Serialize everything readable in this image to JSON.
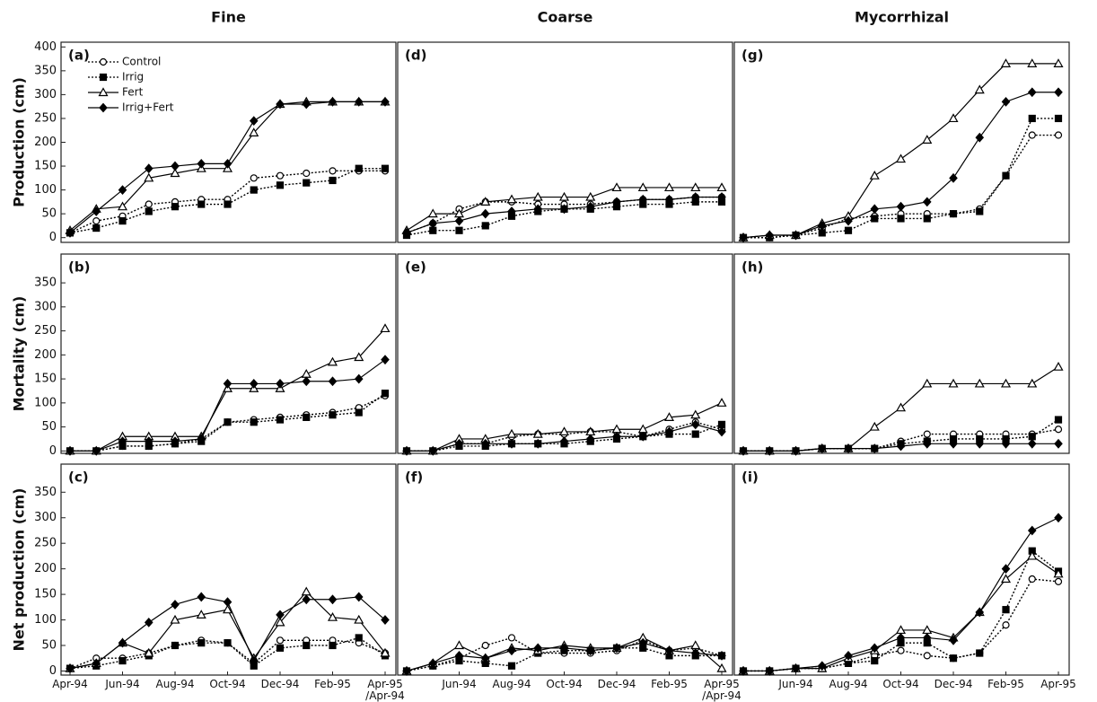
{
  "chart_data": [
    {
      "type": "line",
      "label": "(a)",
      "title": "Fine",
      "ylabel": "Production (cm)",
      "ylim": [
        -10,
        410
      ],
      "yticks": [
        0,
        50,
        100,
        150,
        200,
        250,
        300,
        350,
        400
      ],
      "legend": "upper left",
      "series": [
        {
          "name": "Control",
          "marker": "circle",
          "dashed": true,
          "color": "#000",
          "values": [
            10,
            35,
            45,
            70,
            75,
            80,
            80,
            125,
            130,
            135,
            140,
            140,
            140
          ]
        },
        {
          "name": "Irrig",
          "marker": "square",
          "dashed": true,
          "color": "#000",
          "values": [
            10,
            20,
            35,
            55,
            65,
            70,
            70,
            100,
            110,
            115,
            120,
            145,
            145
          ]
        },
        {
          "name": "Fert",
          "marker": "triangle",
          "dashed": false,
          "color": "#000",
          "values": [
            15,
            60,
            65,
            125,
            135,
            145,
            145,
            220,
            280,
            285,
            285,
            285,
            285
          ]
        },
        {
          "name": "Irrig+Fert",
          "marker": "diamond",
          "dashed": false,
          "color": "#000",
          "values": [
            10,
            55,
            100,
            145,
            150,
            155,
            155,
            245,
            280,
            280,
            285,
            285,
            285
          ]
        }
      ]
    },
    {
      "type": "line",
      "label": "(b)",
      "ylabel": "Mortality (cm)",
      "ylim": [
        -5,
        410
      ],
      "yticks": [
        0,
        50,
        100,
        150,
        200,
        250,
        300,
        350
      ],
      "series": [
        {
          "marker": "circle",
          "dashed": true,
          "color": "#000",
          "values": [
            0,
            0,
            10,
            10,
            15,
            25,
            60,
            65,
            70,
            75,
            80,
            90,
            115
          ]
        },
        {
          "marker": "square",
          "dashed": true,
          "color": "#000",
          "values": [
            0,
            0,
            10,
            10,
            15,
            20,
            60,
            60,
            65,
            70,
            75,
            80,
            120
          ]
        },
        {
          "marker": "triangle",
          "dashed": false,
          "color": "#000",
          "values": [
            0,
            0,
            30,
            30,
            30,
            30,
            130,
            130,
            130,
            160,
            185,
            195,
            255
          ]
        },
        {
          "marker": "diamond",
          "dashed": false,
          "color": "#000",
          "values": [
            0,
            0,
            20,
            20,
            20,
            25,
            140,
            140,
            140,
            145,
            145,
            150,
            190
          ]
        }
      ]
    },
    {
      "type": "line",
      "label": "(c)",
      "ylabel": "Net production (cm)",
      "ylim": [
        -8,
        405
      ],
      "yticks": [
        0,
        50,
        100,
        150,
        200,
        250,
        300,
        350
      ],
      "categories": [
        "Apr-94",
        null,
        "Jun-94",
        null,
        "Aug-94",
        null,
        "Oct-94",
        null,
        "Dec-94",
        null,
        "Feb-95",
        null,
        "Apr-95\n/Apr-94"
      ],
      "series": [
        {
          "marker": "circle",
          "dashed": true,
          "color": "#000",
          "values": [
            5,
            25,
            25,
            35,
            50,
            60,
            55,
            15,
            60,
            60,
            60,
            55,
            35
          ]
        },
        {
          "marker": "square",
          "dashed": true,
          "color": "#000",
          "values": [
            5,
            10,
            20,
            30,
            50,
            55,
            55,
            10,
            45,
            50,
            50,
            65,
            30
          ]
        },
        {
          "marker": "triangle",
          "dashed": false,
          "color": "#000",
          "values": [
            5,
            15,
            55,
            35,
            100,
            110,
            120,
            25,
            95,
            155,
            105,
            100,
            35
          ]
        },
        {
          "marker": "diamond",
          "dashed": false,
          "color": "#000",
          "values": [
            5,
            15,
            55,
            95,
            130,
            145,
            135,
            20,
            110,
            140,
            140,
            145,
            100
          ]
        }
      ]
    },
    {
      "type": "line",
      "label": "(d)",
      "title": "Coarse",
      "ylim": [
        -10,
        410
      ],
      "series": [
        {
          "marker": "circle",
          "dashed": true,
          "color": "#000",
          "values": [
            10,
            30,
            60,
            75,
            75,
            70,
            70,
            70,
            75,
            80,
            80,
            85,
            85
          ]
        },
        {
          "marker": "square",
          "dashed": true,
          "color": "#000",
          "values": [
            5,
            15,
            15,
            25,
            45,
            55,
            60,
            60,
            65,
            70,
            70,
            75,
            75
          ]
        },
        {
          "marker": "triangle",
          "dashed": false,
          "color": "#000",
          "values": [
            15,
            50,
            50,
            75,
            80,
            85,
            85,
            85,
            105,
            105,
            105,
            105,
            105
          ]
        },
        {
          "marker": "diamond",
          "dashed": false,
          "color": "#000",
          "values": [
            10,
            30,
            35,
            50,
            55,
            60,
            60,
            65,
            75,
            80,
            80,
            85,
            85
          ]
        }
      ]
    },
    {
      "type": "line",
      "label": "(e)",
      "ylim": [
        -5,
        410
      ],
      "series": [
        {
          "marker": "circle",
          "dashed": true,
          "color": "#000",
          "values": [
            0,
            0,
            15,
            15,
            30,
            35,
            35,
            40,
            40,
            30,
            45,
            60,
            45
          ]
        },
        {
          "marker": "square",
          "dashed": true,
          "color": "#000",
          "values": [
            0,
            0,
            10,
            10,
            15,
            15,
            15,
            20,
            25,
            30,
            35,
            35,
            55
          ]
        },
        {
          "marker": "triangle",
          "dashed": false,
          "color": "#000",
          "values": [
            0,
            0,
            25,
            25,
            35,
            35,
            40,
            40,
            45,
            45,
            70,
            75,
            100
          ]
        },
        {
          "marker": "diamond",
          "dashed": false,
          "color": "#000",
          "values": [
            0,
            0,
            15,
            15,
            15,
            15,
            20,
            25,
            30,
            30,
            40,
            55,
            40
          ]
        }
      ]
    },
    {
      "type": "line",
      "label": "(f)",
      "ylim": [
        -8,
        405
      ],
      "categories": [
        null,
        null,
        "Jun-94",
        null,
        "Aug-94",
        null,
        "Oct-94",
        null,
        "Dec-94",
        null,
        "Feb-95",
        null,
        "Apr-95\n/Apr-94"
      ],
      "series": [
        {
          "marker": "circle",
          "dashed": true,
          "color": "#000",
          "values": [
            0,
            10,
            25,
            50,
            65,
            35,
            35,
            35,
            40,
            60,
            40,
            45,
            30
          ]
        },
        {
          "marker": "square",
          "dashed": true,
          "color": "#000",
          "values": [
            0,
            10,
            20,
            15,
            10,
            35,
            40,
            40,
            45,
            45,
            30,
            30,
            30
          ]
        },
        {
          "marker": "triangle",
          "dashed": false,
          "color": "#000",
          "values": [
            0,
            15,
            50,
            25,
            45,
            40,
            50,
            45,
            45,
            65,
            40,
            50,
            5
          ]
        },
        {
          "marker": "diamond",
          "dashed": false,
          "color": "#000",
          "values": [
            0,
            15,
            30,
            25,
            40,
            45,
            45,
            40,
            45,
            55,
            40,
            35,
            30
          ]
        }
      ]
    },
    {
      "type": "line",
      "label": "(g)",
      "title": "Mycorrhizal",
      "ylim": [
        -10,
        410
      ],
      "series": [
        {
          "marker": "circle",
          "dashed": true,
          "color": "#000",
          "values": [
            0,
            0,
            5,
            20,
            40,
            45,
            50,
            50,
            50,
            60,
            130,
            215,
            215
          ]
        },
        {
          "marker": "square",
          "dashed": true,
          "color": "#000",
          "values": [
            0,
            0,
            5,
            10,
            15,
            40,
            40,
            40,
            50,
            55,
            130,
            250,
            250
          ]
        },
        {
          "marker": "triangle",
          "dashed": false,
          "color": "#000",
          "values": [
            0,
            5,
            5,
            30,
            45,
            130,
            165,
            205,
            250,
            310,
            365,
            365,
            365
          ]
        },
        {
          "marker": "diamond",
          "dashed": false,
          "color": "#000",
          "values": [
            0,
            5,
            5,
            25,
            35,
            60,
            65,
            75,
            125,
            210,
            285,
            305,
            305
          ]
        }
      ]
    },
    {
      "type": "line",
      "label": "(h)",
      "ylim": [
        -5,
        410
      ],
      "series": [
        {
          "marker": "circle",
          "dashed": true,
          "color": "#000",
          "values": [
            0,
            0,
            0,
            5,
            5,
            5,
            20,
            35,
            35,
            35,
            35,
            35,
            45
          ]
        },
        {
          "marker": "square",
          "dashed": true,
          "color": "#000",
          "values": [
            0,
            0,
            0,
            5,
            5,
            5,
            15,
            20,
            25,
            25,
            25,
            30,
            65
          ]
        },
        {
          "marker": "triangle",
          "dashed": false,
          "color": "#000",
          "values": [
            0,
            0,
            0,
            5,
            5,
            50,
            90,
            140,
            140,
            140,
            140,
            140,
            175
          ]
        },
        {
          "marker": "diamond",
          "dashed": false,
          "color": "#000",
          "values": [
            0,
            0,
            0,
            5,
            5,
            5,
            10,
            15,
            15,
            15,
            15,
            15,
            15
          ]
        }
      ]
    },
    {
      "type": "line",
      "label": "(i)",
      "ylim": [
        -8,
        405
      ],
      "categories": [
        null,
        null,
        "Jun-94",
        null,
        "Aug-94",
        null,
        "Oct-94",
        null,
        "Dec-94",
        null,
        "Feb-95",
        null,
        "Apr-95"
      ],
      "series": [
        {
          "marker": "circle",
          "dashed": true,
          "color": "#000",
          "values": [
            0,
            0,
            5,
            5,
            15,
            30,
            40,
            30,
            25,
            35,
            90,
            180,
            175
          ]
        },
        {
          "marker": "square",
          "dashed": true,
          "color": "#000",
          "values": [
            0,
            0,
            5,
            5,
            15,
            20,
            55,
            55,
            25,
            35,
            120,
            235,
            195
          ]
        },
        {
          "marker": "triangle",
          "dashed": false,
          "color": "#000",
          "values": [
            0,
            0,
            5,
            5,
            25,
            40,
            80,
            80,
            65,
            115,
            180,
            225,
            190
          ]
        },
        {
          "marker": "diamond",
          "dashed": false,
          "color": "#000",
          "values": [
            0,
            0,
            5,
            10,
            30,
            45,
            65,
            65,
            60,
            115,
            200,
            275,
            300
          ]
        }
      ]
    }
  ]
}
